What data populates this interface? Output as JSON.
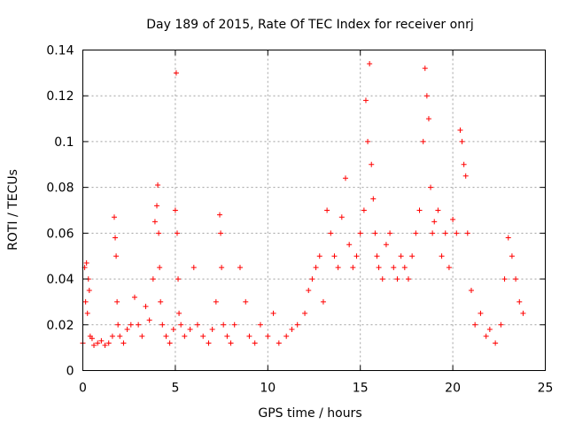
{
  "chart_data": {
    "type": "scatter",
    "title": "Day 189 of 2015, Rate Of TEC Index for receiver onrj",
    "xlabel": "GPS time / hours",
    "ylabel": "ROTI / TECUs",
    "xlim": [
      0,
      25
    ],
    "ylim": [
      0,
      0.14
    ],
    "x_ticks": [
      0,
      5,
      10,
      15,
      20,
      25
    ],
    "y_ticks": [
      0,
      0.02,
      0.04,
      0.06,
      0.08,
      0.1,
      0.12,
      0.14
    ],
    "y_tick_labels": [
      "0",
      "0.02",
      "0.04",
      "0.06",
      "0.08",
      "0.1",
      "0.12",
      "0.14"
    ],
    "grid": true,
    "marker": "+",
    "color": "#ff0000",
    "series": [
      {
        "name": "ROTI",
        "x": [
          0.0,
          0.1,
          0.15,
          0.2,
          0.25,
          0.3,
          0.35,
          0.4,
          0.5,
          0.6,
          0.8,
          1.0,
          1.2,
          1.4,
          1.6,
          1.7,
          1.75,
          1.8,
          1.85,
          1.9,
          2.0,
          2.2,
          2.4,
          2.6,
          2.8,
          3.0,
          3.2,
          3.4,
          3.6,
          3.8,
          3.9,
          4.0,
          4.05,
          4.1,
          4.15,
          4.2,
          4.3,
          4.5,
          4.7,
          4.9,
          5.0,
          5.05,
          5.1,
          5.15,
          5.2,
          5.3,
          5.5,
          5.8,
          6.0,
          6.2,
          6.5,
          6.8,
          7.0,
          7.2,
          7.4,
          7.45,
          7.5,
          7.6,
          7.8,
          8.0,
          8.2,
          8.5,
          8.8,
          9.0,
          9.3,
          9.6,
          10.0,
          10.3,
          10.6,
          11.0,
          11.3,
          11.6,
          12.0,
          12.2,
          12.4,
          12.6,
          12.8,
          13.0,
          13.2,
          13.4,
          13.6,
          13.8,
          14.0,
          14.2,
          14.4,
          14.6,
          14.8,
          15.0,
          15.2,
          15.3,
          15.4,
          15.5,
          15.6,
          15.7,
          15.8,
          15.9,
          16.0,
          16.2,
          16.4,
          16.6,
          16.8,
          17.0,
          17.2,
          17.4,
          17.6,
          17.8,
          18.0,
          18.2,
          18.4,
          18.5,
          18.6,
          18.7,
          18.8,
          18.9,
          19.0,
          19.2,
          19.4,
          19.6,
          19.8,
          20.0,
          20.2,
          20.4,
          20.5,
          20.6,
          20.7,
          20.8,
          21.0,
          21.2,
          21.5,
          21.8,
          22.0,
          22.3,
          22.6,
          22.8,
          23.0,
          23.2,
          23.4,
          23.6,
          23.8
        ],
        "y": [
          0.012,
          0.045,
          0.03,
          0.047,
          0.025,
          0.04,
          0.035,
          0.015,
          0.014,
          0.011,
          0.012,
          0.013,
          0.011,
          0.012,
          0.015,
          0.067,
          0.058,
          0.05,
          0.03,
          0.02,
          0.015,
          0.012,
          0.018,
          0.02,
          0.032,
          0.02,
          0.015,
          0.028,
          0.022,
          0.04,
          0.065,
          0.072,
          0.081,
          0.06,
          0.045,
          0.03,
          0.02,
          0.015,
          0.012,
          0.018,
          0.07,
          0.13,
          0.06,
          0.04,
          0.025,
          0.02,
          0.015,
          0.018,
          0.045,
          0.02,
          0.015,
          0.012,
          0.018,
          0.03,
          0.068,
          0.06,
          0.045,
          0.02,
          0.015,
          0.012,
          0.02,
          0.045,
          0.03,
          0.015,
          0.012,
          0.02,
          0.015,
          0.025,
          0.012,
          0.015,
          0.018,
          0.02,
          0.025,
          0.035,
          0.04,
          0.045,
          0.05,
          0.03,
          0.07,
          0.06,
          0.05,
          0.045,
          0.067,
          0.084,
          0.055,
          0.045,
          0.05,
          0.06,
          0.07,
          0.118,
          0.1,
          0.134,
          0.09,
          0.075,
          0.06,
          0.05,
          0.045,
          0.04,
          0.055,
          0.06,
          0.045,
          0.04,
          0.05,
          0.045,
          0.04,
          0.05,
          0.06,
          0.07,
          0.1,
          0.132,
          0.12,
          0.11,
          0.08,
          0.06,
          0.065,
          0.07,
          0.05,
          0.06,
          0.045,
          0.066,
          0.06,
          0.105,
          0.1,
          0.09,
          0.085,
          0.06,
          0.035,
          0.02,
          0.025,
          0.015,
          0.018,
          0.012,
          0.02,
          0.04,
          0.058,
          0.05,
          0.04,
          0.03,
          0.025
        ]
      }
    ]
  }
}
